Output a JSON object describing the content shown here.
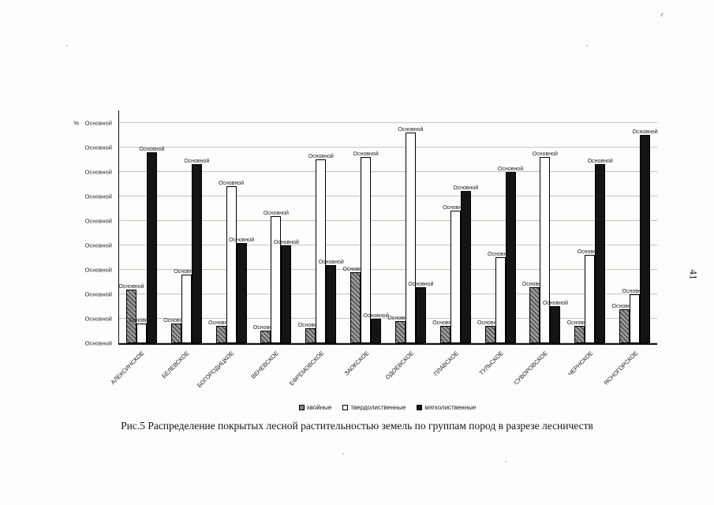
{
  "page": {
    "page_number": "41",
    "caption": "Рис.5 Распределение покрытых лесной растительностью земель по группам пород в разрезе лесничеств"
  },
  "chart_data": {
    "type": "bar",
    "title": "",
    "y_axis_title": "%",
    "y_tick_label": "Основной",
    "y_tick_values": [
      0,
      10,
      20,
      30,
      40,
      50,
      60,
      70,
      80,
      90
    ],
    "ylim": [
      0,
      95
    ],
    "grid": true,
    "legend_position": "bottom",
    "bar_value_label": "Основной",
    "note": "Axis tick labels and every bar data label display the placeholder text 'Основной'; numeric series values are estimated from bar heights against the gridlines.",
    "categories": [
      "АЛЕКСИНСКОЕ",
      "БЕЛЕВСКОЕ",
      "БОГОРОДИЦКОЕ",
      "ВЕНЕВСКОЕ",
      "ЕФРЕМОВСКОЕ",
      "ЗАОКСКОЕ",
      "ОДОЕВСКОЕ",
      "ПЛАВСКОЕ",
      "ТУЛЬСКОЕ",
      "СУВОРОВСКОЕ",
      "ЧЕРНСКОЕ",
      "ЯСНОГОРСКОЕ"
    ],
    "series": [
      {
        "name": "хвойные",
        "color": "#5a5a5a",
        "fill": "hatched-gray",
        "values": [
          22,
          8,
          7,
          5,
          6,
          29,
          9,
          7,
          7,
          23,
          7,
          14
        ]
      },
      {
        "name": "твердолиственные",
        "color": "#ffffff",
        "fill": "white",
        "values": [
          8,
          28,
          64,
          52,
          75,
          76,
          86,
          54,
          35,
          76,
          36,
          20
        ]
      },
      {
        "name": "мягколиственные",
        "color": "#141414",
        "fill": "black",
        "values": [
          78,
          73,
          41,
          40,
          32,
          10,
          23,
          62,
          70,
          15,
          73,
          85
        ]
      }
    ]
  }
}
